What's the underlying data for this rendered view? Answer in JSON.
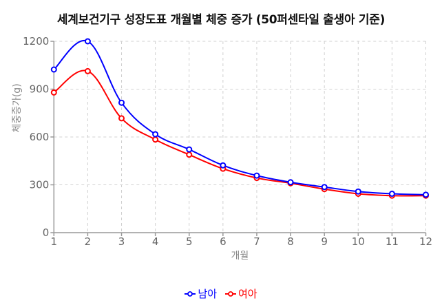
{
  "title": "세계보건기구 성장도표 개월별 체중 증가 (50퍼센타일 출생아 기준)",
  "legend": {
    "items": [
      {
        "label": "남아",
        "color": "#0000ff"
      },
      {
        "label": "여아",
        "color": "#ff0000"
      }
    ]
  },
  "chart_data": {
    "type": "line",
    "title": "세계보건기구 성장도표 개월별 체중 증가 (50퍼센타일 출생아 기준)",
    "xlabel": "개월",
    "ylabel": "체중증가(g)",
    "x": [
      1,
      2,
      3,
      4,
      5,
      6,
      7,
      8,
      9,
      10,
      11,
      12
    ],
    "xticks": [
      "1",
      "2",
      "3",
      "4",
      "5",
      "6",
      "7",
      "8",
      "9",
      "10",
      "11",
      "12"
    ],
    "yticks": [
      "0",
      "300",
      "600",
      "900",
      "1200"
    ],
    "ylim": [
      0,
      1200
    ],
    "xlim": [
      1,
      12
    ],
    "grid": true,
    "legend_position": "bottom",
    "series": [
      {
        "name": "남아",
        "color": "#0000ff",
        "values": [
          1023,
          1200,
          815,
          617,
          522,
          422,
          358,
          316,
          286,
          258,
          244,
          238
        ]
      },
      {
        "name": "여아",
        "color": "#ff0000",
        "values": [
          879,
          1013,
          717,
          584,
          489,
          401,
          343,
          310,
          273,
          244,
          232,
          232
        ]
      }
    ]
  }
}
